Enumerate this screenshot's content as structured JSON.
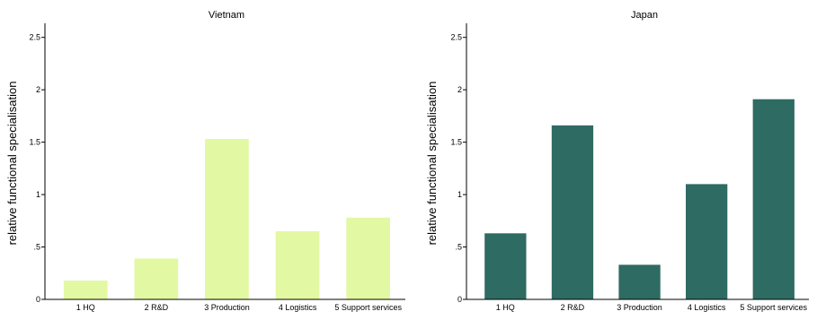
{
  "chart_data": [
    {
      "type": "bar",
      "title": "Vietnam",
      "ylabel": "relative functional specialisation",
      "xlabel": "",
      "categories": [
        "1 HQ",
        "2 R&D",
        "3 Production",
        "4 Logistics",
        "5 Support services"
      ],
      "values": [
        0.18,
        0.39,
        1.53,
        0.65,
        0.78
      ],
      "ylim": [
        0,
        2.6
      ],
      "yticks": [
        0,
        0.5,
        1,
        1.5,
        2,
        2.5
      ],
      "ytick_labels": [
        "0",
        ".5",
        "1",
        "1.5",
        "2",
        "2.5"
      ],
      "color": "#e3f8a2",
      "grid": false
    },
    {
      "type": "bar",
      "title": "Japan",
      "ylabel": "relative functional specialisation",
      "xlabel": "",
      "categories": [
        "1 HQ",
        "2 R&D",
        "3 Production",
        "4 Logistics",
        "5 Support services"
      ],
      "values": [
        0.63,
        1.66,
        0.33,
        1.1,
        1.91
      ],
      "ylim": [
        0,
        2.6
      ],
      "yticks": [
        0,
        0.5,
        1,
        1.5,
        2,
        2.5
      ],
      "ytick_labels": [
        "0",
        ".5",
        "1",
        "1.5",
        "2",
        "2.5"
      ],
      "color": "#2e6b63",
      "grid": false
    }
  ]
}
